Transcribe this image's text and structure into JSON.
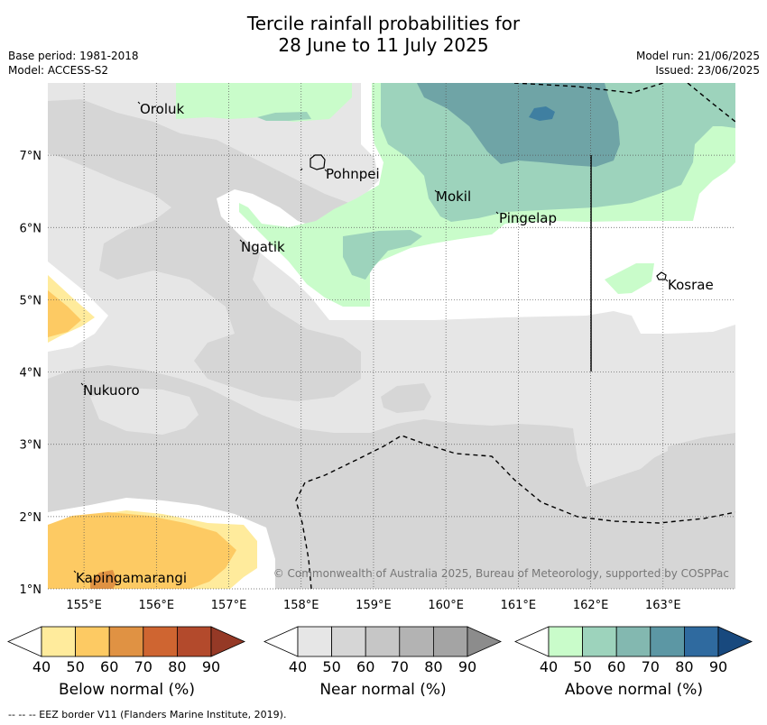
{
  "title": {
    "line1": "Tercile rainfall probabilities for",
    "line2": "28 June to 11 July 2025"
  },
  "meta": {
    "base_period": "Base period: 1981-2018",
    "model": "Model: ACCESS-S2",
    "model_run": "Model run: 21/06/2025",
    "issued": "Issued: 23/06/2025"
  },
  "map": {
    "lon_range": [
      154.5,
      164.0
    ],
    "lat_range": [
      1.0,
      8.0
    ],
    "lon_ticks": [
      "155°E",
      "156°E",
      "157°E",
      "158°E",
      "159°E",
      "160°E",
      "161°E",
      "162°E",
      "163°E"
    ],
    "lat_ticks": [
      "1°N",
      "2°N",
      "3°N",
      "4°N",
      "5°N",
      "6°N",
      "7°N"
    ],
    "places": [
      {
        "name": "Oroluk"
      },
      {
        "name": "Pohnpei"
      },
      {
        "name": "Mokil"
      },
      {
        "name": "Pingelap"
      },
      {
        "name": "Ngatik"
      },
      {
        "name": "Kosrae"
      },
      {
        "name": "Nukuoro"
      },
      {
        "name": "Kapingamarangi"
      }
    ],
    "copyright": "© Commonwealth of Australia 2025, Bureau of Meteorology, supported by COSPPac"
  },
  "colorbars": [
    {
      "label": "Below normal (%)",
      "ticks": [
        "40",
        "50",
        "60",
        "70",
        "80",
        "90"
      ],
      "colors": [
        "#ffffff",
        "#ffeb9c",
        "#fdca63",
        "#e09243",
        "#cf6531",
        "#b34a2c",
        "#953926"
      ]
    },
    {
      "label": "Near normal (%)",
      "ticks": [
        "40",
        "50",
        "60",
        "70",
        "80",
        "90"
      ],
      "colors": [
        "#ffffff",
        "#e6e6e6",
        "#d6d6d6",
        "#c6c6c6",
        "#b3b3b3",
        "#a4a4a4",
        "#8c8c8c"
      ]
    },
    {
      "label": "Above normal (%)",
      "ticks": [
        "40",
        "50",
        "60",
        "70",
        "80",
        "90"
      ],
      "colors": [
        "#ffffff",
        "#c9fcca",
        "#9dd3bc",
        "#83b8b0",
        "#5c97a4",
        "#2f6a9f",
        "#18497e"
      ]
    }
  ],
  "footer": "--  --  -- EEZ border V11 (Flanders Marine Institute, 2019)."
}
